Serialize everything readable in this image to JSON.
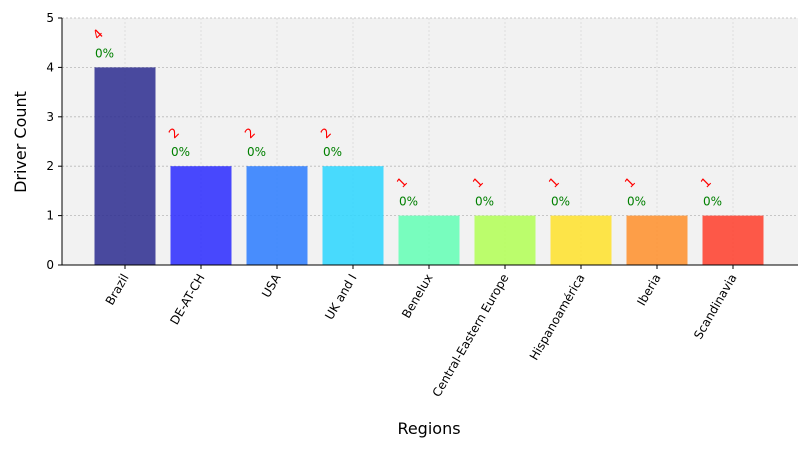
{
  "chart_data": {
    "type": "bar",
    "title": "",
    "xlabel": "Regions",
    "ylabel": "Driver Count",
    "ylim": [
      0,
      5
    ],
    "yticks": [
      "0",
      "1",
      "2",
      "3",
      "4",
      "5"
    ],
    "grid": true,
    "categories": [
      "Brazil",
      "DE-AT-CH",
      "USA",
      "UK and I",
      "Benelux",
      "Central-Eastern Europe",
      "Hispanoamérica",
      "Iberia",
      "Scandinavia"
    ],
    "values": [
      4,
      2,
      2,
      2,
      1,
      1,
      1,
      1,
      1
    ],
    "count_labels": [
      "4",
      "2",
      "2",
      "2",
      "1",
      "1",
      "1",
      "1",
      "1"
    ],
    "percent_labels": [
      "0%",
      "0%",
      "0%",
      "0%",
      "0%",
      "0%",
      "0%",
      "0%",
      "0%"
    ],
    "colors": [
      "#2b2b8f",
      "#2a2aff",
      "#2a7bff",
      "#2ad6ff",
      "#63ffb5",
      "#b2ff55",
      "#ffe22a",
      "#ff8f2a",
      "#ff3d2a"
    ],
    "plot_background": "#f2f2f2"
  }
}
